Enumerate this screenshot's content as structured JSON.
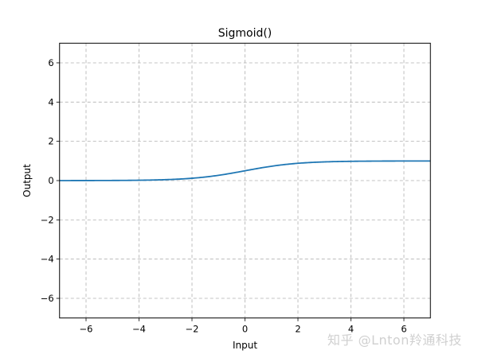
{
  "chart_data": {
    "type": "line",
    "title": "Sigmoid()",
    "xlabel": "Input",
    "ylabel": "Output",
    "xlim": [
      -7,
      7
    ],
    "ylim": [
      -7,
      7
    ],
    "grid": true,
    "grid_style": "dashed",
    "x_ticks": [
      -6,
      -4,
      -2,
      0,
      2,
      4,
      6
    ],
    "y_ticks": [
      -6,
      -4,
      -2,
      0,
      2,
      4,
      6
    ],
    "x_tick_labels": [
      "−6",
      "−4",
      "−2",
      "0",
      "2",
      "4",
      "6"
    ],
    "y_tick_labels": [
      "−6",
      "−4",
      "−2",
      "0",
      "2",
      "4",
      "6"
    ],
    "series": [
      {
        "name": "Sigmoid",
        "color": "#1f77b4",
        "function": "1/(1+exp(-x))",
        "x": [
          -7,
          -6,
          -5,
          -4,
          -3,
          -2,
          -1,
          0,
          1,
          2,
          3,
          4,
          5,
          6,
          7
        ],
        "y": [
          0.0009,
          0.0025,
          0.0067,
          0.018,
          0.047,
          0.119,
          0.269,
          0.5,
          0.731,
          0.881,
          0.953,
          0.982,
          0.993,
          0.9975,
          0.9991
        ]
      }
    ],
    "legend": null
  },
  "watermark": "知乎 @Lnton羚通科技"
}
